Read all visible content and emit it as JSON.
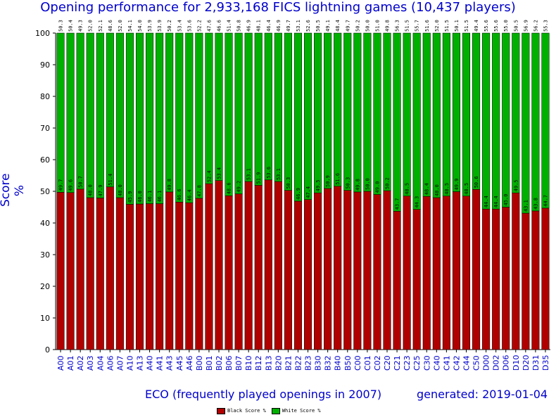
{
  "chart_data": {
    "type": "bar",
    "stacked": true,
    "title": "Opening performance for 2,933,168 FICS lightning games (10,437 players)",
    "xlabel": "ECO (frequently played openings in 2007)",
    "ylabel": "Score %",
    "footer": "generated: 2019-01-04",
    "ylim": [
      0,
      100
    ],
    "yticks": [
      0,
      10,
      20,
      30,
      40,
      50,
      60,
      70,
      80,
      90,
      100
    ],
    "grid": false,
    "legend_position": "bottom-center",
    "categories": [
      "A00",
      "A01",
      "A02",
      "A03",
      "A04",
      "A06",
      "A07",
      "A10",
      "A13",
      "A40",
      "A41",
      "A43",
      "A45",
      "A46",
      "B00",
      "B01",
      "B02",
      "B06",
      "B07",
      "B10",
      "B12",
      "B13",
      "B20",
      "B21",
      "B22",
      "B23",
      "B30",
      "B32",
      "B40",
      "B50",
      "C00",
      "C01",
      "C02",
      "C20",
      "C21",
      "C23",
      "C25",
      "C30",
      "C40",
      "C41",
      "C42",
      "C44",
      "C50",
      "D00",
      "D02",
      "D06",
      "D10",
      "D20",
      "D31",
      "D35"
    ],
    "series": [
      {
        "name": "Black Score %",
        "color": "#b00000",
        "values": [
          49.7,
          49.6,
          50.7,
          48.0,
          47.9,
          51.4,
          48.0,
          45.9,
          46.0,
          46.1,
          46.1,
          49.8,
          46.6,
          46.4,
          47.8,
          52.4,
          53.4,
          48.6,
          49.2,
          53.1,
          51.9,
          53.6,
          53.1,
          50.3,
          46.9,
          47.4,
          49.5,
          50.9,
          51.6,
          50.3,
          49.8,
          50.0,
          49.0,
          50.2,
          43.7,
          48.5,
          44.3,
          48.4,
          48.0,
          48.5,
          49.9,
          48.5,
          50.6,
          44.4,
          44.4,
          45.0,
          49.5,
          43.1,
          43.8,
          44.7
        ]
      },
      {
        "name": "White Score %",
        "color": "#00b000",
        "values": [
          50.3,
          50.4,
          49.3,
          52.0,
          52.1,
          48.6,
          52.0,
          54.1,
          54.0,
          53.9,
          53.9,
          50.2,
          53.4,
          53.6,
          52.2,
          47.6,
          46.6,
          51.4,
          50.8,
          46.9,
          48.1,
          46.4,
          46.9,
          49.7,
          53.1,
          52.6,
          50.5,
          49.1,
          48.4,
          49.7,
          50.2,
          50.0,
          51.0,
          49.8,
          56.3,
          51.5,
          55.7,
          51.6,
          52.0,
          51.5,
          50.1,
          51.5,
          49.4,
          55.6,
          55.6,
          55.0,
          50.5,
          56.9,
          56.2,
          55.3
        ]
      }
    ]
  }
}
